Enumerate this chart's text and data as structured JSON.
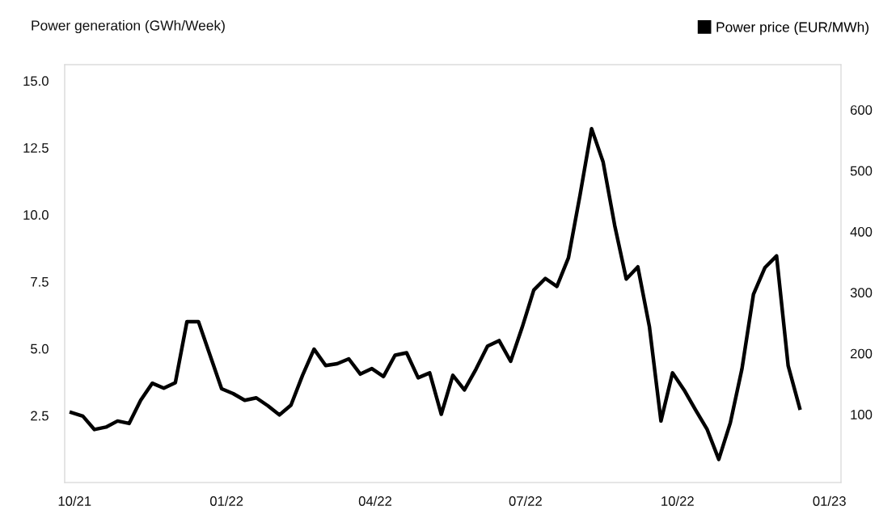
{
  "chart_data": {
    "type": "line",
    "ylabel": "Power generation (GWh/Week)",
    "x": [
      "2021-09-29",
      "2021-10-06",
      "2021-10-13",
      "2021-10-20",
      "2021-10-27",
      "2021-11-03",
      "2021-11-10",
      "2021-11-17",
      "2021-11-24",
      "2021-12-01",
      "2021-12-08",
      "2021-12-15",
      "2021-12-22",
      "2021-12-29",
      "2022-01-05",
      "2022-01-12",
      "2022-01-19",
      "2022-01-26",
      "2022-02-02",
      "2022-02-09",
      "2022-02-16",
      "2022-02-23",
      "2022-03-02",
      "2022-03-09",
      "2022-03-16",
      "2022-03-23",
      "2022-03-30",
      "2022-04-06",
      "2022-04-13",
      "2022-04-20",
      "2022-04-27",
      "2022-05-04",
      "2022-05-11",
      "2022-05-18",
      "2022-05-25",
      "2022-06-01",
      "2022-06-08",
      "2022-06-15",
      "2022-06-22",
      "2022-06-29",
      "2022-07-06",
      "2022-07-13",
      "2022-07-20",
      "2022-07-27",
      "2022-08-03",
      "2022-08-10",
      "2022-08-17",
      "2022-08-24",
      "2022-08-31",
      "2022-09-07",
      "2022-09-14",
      "2022-09-21",
      "2022-09-28",
      "2022-10-05",
      "2022-10-12",
      "2022-10-19",
      "2022-10-26",
      "2022-11-02",
      "2022-11-09",
      "2022-11-16",
      "2022-11-23",
      "2022-11-30",
      "2022-12-07",
      "2022-12-14"
    ],
    "series": [
      {
        "name": "Power price (EUR/MWh)",
        "color": "#000000",
        "axis": "y2",
        "values": [
          103,
          97,
          75,
          79,
          89,
          85,
          123,
          151,
          143,
          152,
          252,
          252,
          197,
          142,
          134,
          123,
          127,
          114,
          99,
          115,
          164,
          207,
          180,
          183,
          191,
          166,
          175,
          162,
          197,
          201,
          160,
          168,
          100,
          164,
          140,
          174,
          212,
          221,
          187,
          243,
          304,
          323,
          310,
          357,
          460,
          569,
          514,
          410,
          322,
          342,
          244,
          89,
          168,
          140,
          107,
          75,
          26,
          86,
          174,
          297,
          341,
          360,
          180,
          110
        ]
      }
    ],
    "xlim": [
      "2021-09-25",
      "2023-01-08"
    ],
    "ylim": [
      0,
      15.6
    ],
    "y2lim": [
      -12,
      674
    ],
    "xticks": [
      {
        "value": "2021-10-01",
        "label": "10/21"
      },
      {
        "value": "2022-01-01",
        "label": "01/22"
      },
      {
        "value": "2022-04-01",
        "label": "04/22"
      },
      {
        "value": "2022-07-01",
        "label": "07/22"
      },
      {
        "value": "2022-10-01",
        "label": "10/22"
      },
      {
        "value": "2023-01-01",
        "label": "01/23"
      }
    ],
    "yticks": [
      {
        "value": 2.5,
        "label": "2.5"
      },
      {
        "value": 5,
        "label": "5.0"
      },
      {
        "value": 7.5,
        "label": "7.5"
      },
      {
        "value": 10,
        "label": "10.0"
      },
      {
        "value": 12.5,
        "label": "12.5"
      },
      {
        "value": 15,
        "label": "15.0"
      }
    ],
    "y2ticks": [
      100,
      200,
      300,
      400,
      500,
      600
    ],
    "legend": "top right",
    "grid": false,
    "line_style": "solid",
    "marker": "none"
  }
}
